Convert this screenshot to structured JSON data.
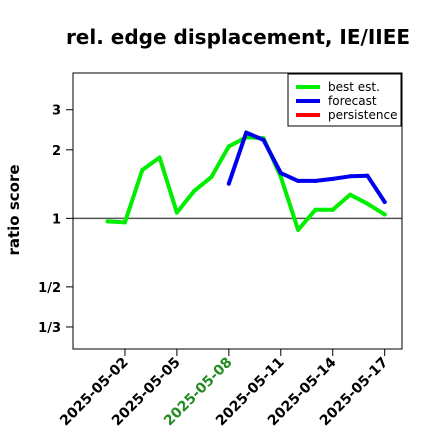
{
  "chart_data": {
    "type": "line",
    "title": "rel. edge displacement, IE/IIEE",
    "ylabel": "ratio score",
    "xlabel": "",
    "y_scale": "log",
    "y_ticks": [
      {
        "value": 3,
        "label": "3"
      },
      {
        "value": 2,
        "label": "2"
      },
      {
        "value": 1,
        "label": "1"
      },
      {
        "value": 0.5,
        "label": "1/2"
      },
      {
        "value": 0.3333,
        "label": "1/3"
      }
    ],
    "ylim": [
      0.2667,
      4.35
    ],
    "x_range": [
      "2025-04-29",
      "2025-05-18"
    ],
    "x_ticks": [
      {
        "date": "2025-05-02",
        "label": "2025-05-02",
        "color": "#000000"
      },
      {
        "date": "2025-05-05",
        "label": "2025-05-05",
        "color": "#000000"
      },
      {
        "date": "2025-05-08",
        "label": "2025-05-08",
        "color": "#228B22"
      },
      {
        "date": "2025-05-11",
        "label": "2025-05-11",
        "color": "#000000"
      },
      {
        "date": "2025-05-14",
        "label": "2025-05-14",
        "color": "#000000"
      },
      {
        "date": "2025-05-17",
        "label": "2025-05-17",
        "color": "#000000"
      }
    ],
    "reference_line": 1,
    "legend_position": "top-right",
    "series": [
      {
        "name": "best est.",
        "color": "#00ee00",
        "points": [
          {
            "x": "2025-05-01",
            "y": 0.97
          },
          {
            "x": "2025-05-02",
            "y": 0.96
          },
          {
            "x": "2025-05-03",
            "y": 1.63
          },
          {
            "x": "2025-05-04",
            "y": 1.85
          },
          {
            "x": "2025-05-05",
            "y": 1.06
          },
          {
            "x": "2025-05-06",
            "y": 1.32
          },
          {
            "x": "2025-05-07",
            "y": 1.52
          },
          {
            "x": "2025-05-08",
            "y": 2.07
          },
          {
            "x": "2025-05-09",
            "y": 2.27
          },
          {
            "x": "2025-05-10",
            "y": 2.25
          },
          {
            "x": "2025-05-11",
            "y": 1.52
          },
          {
            "x": "2025-05-12",
            "y": 0.89
          },
          {
            "x": "2025-05-13",
            "y": 1.09
          },
          {
            "x": "2025-05-14",
            "y": 1.09
          },
          {
            "x": "2025-05-15",
            "y": 1.27
          },
          {
            "x": "2025-05-16",
            "y": 1.16
          },
          {
            "x": "2025-05-17",
            "y": 1.04
          }
        ]
      },
      {
        "name": "forecast",
        "color": "#0000ee",
        "points": [
          {
            "x": "2025-05-08",
            "y": 1.42
          },
          {
            "x": "2025-05-09",
            "y": 2.38
          },
          {
            "x": "2025-05-10",
            "y": 2.21
          },
          {
            "x": "2025-05-11",
            "y": 1.58
          },
          {
            "x": "2025-05-12",
            "y": 1.46
          },
          {
            "x": "2025-05-13",
            "y": 1.46
          },
          {
            "x": "2025-05-14",
            "y": 1.49
          },
          {
            "x": "2025-05-15",
            "y": 1.53
          },
          {
            "x": "2025-05-16",
            "y": 1.54
          },
          {
            "x": "2025-05-17",
            "y": 1.18
          }
        ]
      },
      {
        "name": "persistence",
        "color": "#ff0000",
        "points": []
      }
    ]
  }
}
